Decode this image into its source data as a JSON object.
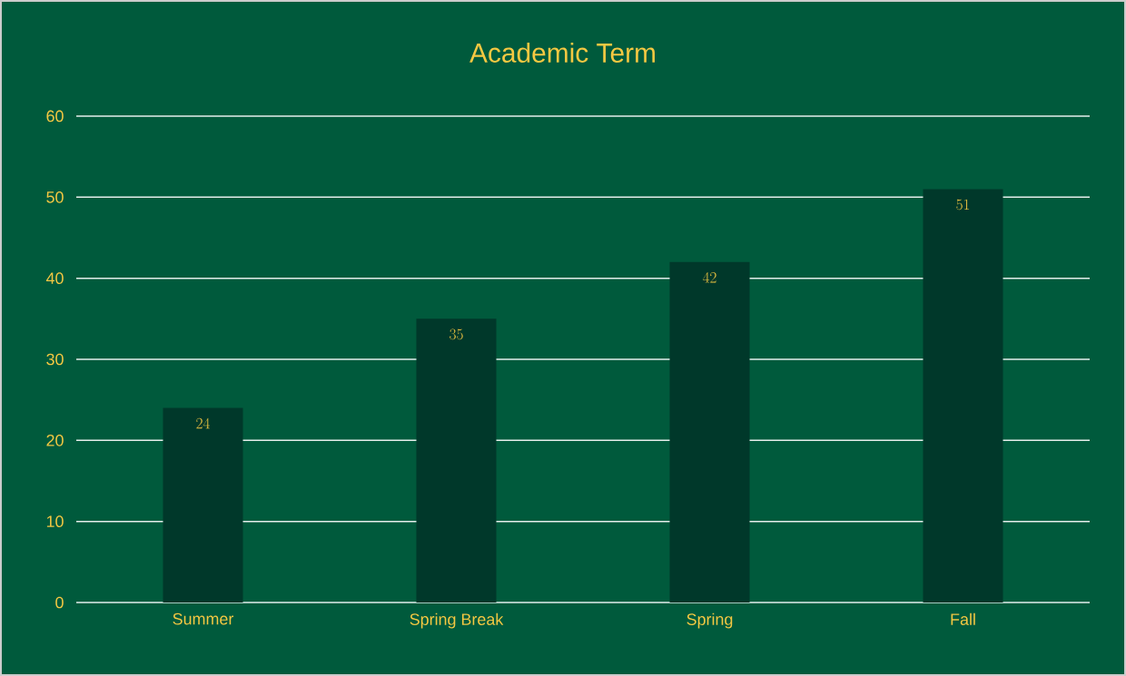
{
  "chart_data": {
    "type": "bar",
    "title": "Academic Term",
    "categories": [
      "Summer",
      "Spring Break",
      "Spring",
      "Fall"
    ],
    "values": [
      24,
      35,
      42,
      51
    ],
    "color": "#00382a",
    "ylim": [
      0,
      60
    ],
    "yticks": [
      0,
      10,
      20,
      30,
      40,
      50,
      60
    ],
    "grid": "y",
    "data_labels": true
  }
}
